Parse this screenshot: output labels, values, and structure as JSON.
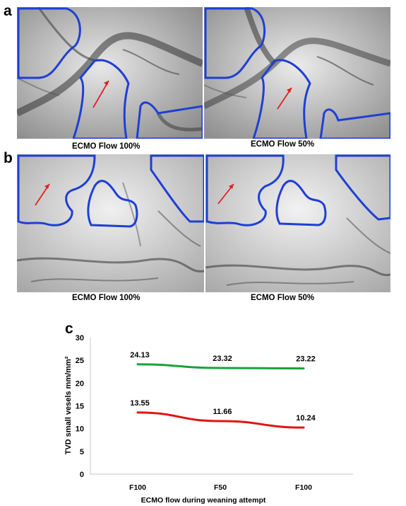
{
  "panels": {
    "a": {
      "letter": "a",
      "left_caption": "ECMO Flow 100%",
      "right_caption": "ECMO Flow 50%"
    },
    "b": {
      "letter": "b",
      "left_caption": "ECMO Flow 100%",
      "right_caption": "ECMO Flow 50%"
    },
    "c": {
      "letter": "c"
    }
  },
  "colors": {
    "outline": "#1f3fd4",
    "arrow": "#e02020",
    "green_series": "#1aa23a",
    "red_series": "#e21414"
  },
  "chart_data": {
    "type": "line",
    "categories": [
      "F100",
      "F50",
      "F100"
    ],
    "series": [
      {
        "values": [
          24.13,
          23.32,
          23.22
        ],
        "color": "#1aa23a"
      },
      {
        "values": [
          13.55,
          11.66,
          10.24
        ],
        "color": "#e21414"
      }
    ],
    "data_labels": [
      [
        "24.13",
        "23.32",
        "23.22"
      ],
      [
        "13.55",
        "11.66",
        "10.24"
      ]
    ],
    "ylabel": "TVD small vesels mm/mm²",
    "xlabel": "ECMO flow during weaning attempt",
    "ylim": [
      0,
      30
    ],
    "yticks": [
      0,
      5,
      10,
      15,
      20,
      25,
      30
    ],
    "grid": false,
    "legend": "none"
  }
}
